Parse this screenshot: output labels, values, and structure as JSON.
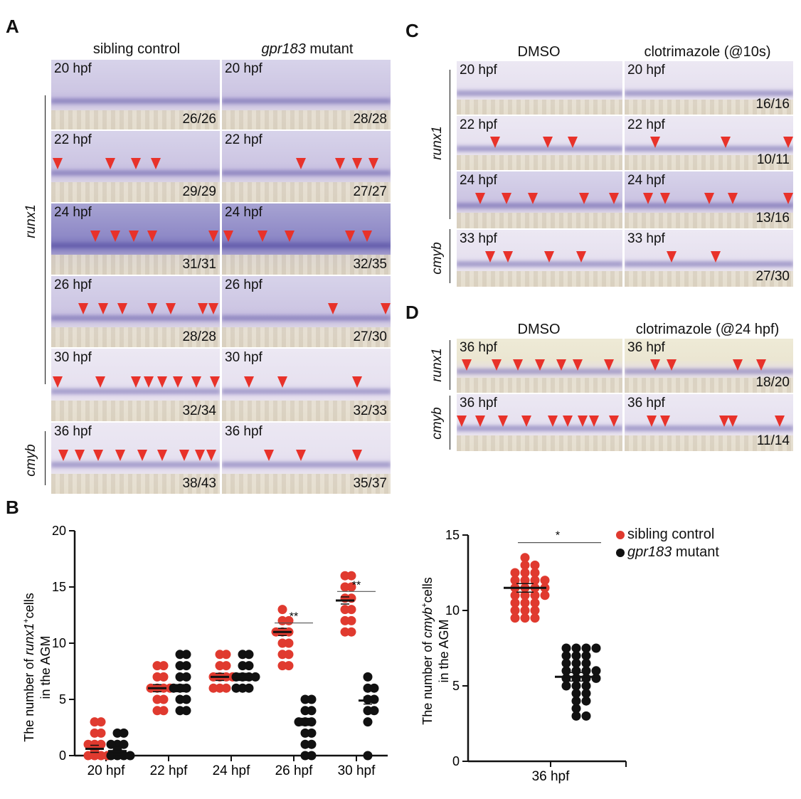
{
  "panels": {
    "A": {
      "label": "A",
      "col1": "sibling control",
      "col2_gene": "gpr183",
      "col2_rest": " mutant",
      "row_runx1": "runx1",
      "row_cmyb": "cmyb",
      "tiles": [
        {
          "left_label": "20 hpf",
          "left_count": "26/26",
          "right_label": "20 hpf",
          "right_count": "28/28"
        },
        {
          "left_label": "22 hpf",
          "left_count": "29/29",
          "right_label": "22 hpf",
          "right_count": "27/27"
        },
        {
          "left_label": "24 hpf",
          "left_count": "31/31",
          "right_label": "24 hpf",
          "right_count": "32/35"
        },
        {
          "left_label": "26 hpf",
          "left_count": "28/28",
          "right_label": "26 hpf",
          "right_count": "27/30"
        },
        {
          "left_label": "30 hpf",
          "left_count": "32/34",
          "right_label": "30 hpf",
          "right_count": "32/33"
        },
        {
          "left_label": "36 hpf",
          "left_count": "38/43",
          "right_label": "36 hpf",
          "right_count": "35/37"
        }
      ]
    },
    "C": {
      "label": "C",
      "col1": "DMSO",
      "col2": "clotrimazole (@10s)",
      "row_runx1": "runx1",
      "row_cmyb": "cmyb",
      "tiles": [
        {
          "left_label": "20 hpf",
          "right_label": "20 hpf",
          "right_count": "16/16"
        },
        {
          "left_label": "22 hpf",
          "right_label": "22 hpf",
          "right_count": "10/11"
        },
        {
          "left_label": "24 hpf",
          "right_label": "24 hpf",
          "right_count": "13/16"
        },
        {
          "left_label": "33 hpf",
          "right_label": "33 hpf",
          "right_count": "27/30"
        }
      ]
    },
    "D": {
      "label": "D",
      "col1": "DMSO",
      "col2": "clotrimazole (@24 hpf)",
      "row_runx1": "runx1",
      "row_cmyb": "cmyb",
      "tiles": [
        {
          "left_label": "36 hpf",
          "right_label": "36 hpf",
          "right_count": "18/20"
        },
        {
          "left_label": "36 hpf",
          "right_label": "36 hpf",
          "right_count": "11/14"
        }
      ]
    },
    "B": {
      "label": "B"
    }
  },
  "chart_data": [
    {
      "type": "scatter",
      "ylabel_pre": "The number of ",
      "ylabel_gene": "runx1",
      "ylabel_sup": "+",
      "ylabel_post": "cells",
      "ylabel_line2": "in the AGM",
      "ylim": [
        0,
        20
      ],
      "yticks": [
        "0",
        "5",
        "10",
        "15",
        "20"
      ],
      "categories": [
        "20 hpf",
        "22 hpf",
        "24 hpf",
        "26 hpf",
        "30 hpf"
      ],
      "series": [
        {
          "name": "sibling control",
          "color": "#e03a2f",
          "points": [
            [
              0,
              0
            ],
            [
              0,
              0
            ],
            [
              0,
              0
            ],
            [
              0,
              0
            ],
            [
              0,
              1
            ],
            [
              0,
              1
            ],
            [
              0,
              1
            ],
            [
              0,
              2
            ],
            [
              0,
              2
            ],
            [
              0,
              3
            ],
            [
              0,
              3
            ],
            [
              0,
              0.5
            ],
            [
              1,
              4
            ],
            [
              1,
              4
            ],
            [
              1,
              5
            ],
            [
              1,
              5
            ],
            [
              1,
              6
            ],
            [
              1,
              6
            ],
            [
              1,
              6
            ],
            [
              1,
              6
            ],
            [
              1,
              7
            ],
            [
              1,
              7
            ],
            [
              1,
              8
            ],
            [
              1,
              8
            ],
            [
              2,
              6
            ],
            [
              2,
              6
            ],
            [
              2,
              6
            ],
            [
              2,
              7
            ],
            [
              2,
              7
            ],
            [
              2,
              7
            ],
            [
              2,
              7
            ],
            [
              2,
              8
            ],
            [
              2,
              8
            ],
            [
              2,
              9
            ],
            [
              2,
              9
            ],
            [
              3,
              8
            ],
            [
              3,
              8
            ],
            [
              3,
              9
            ],
            [
              3,
              9
            ],
            [
              3,
              10
            ],
            [
              3,
              10
            ],
            [
              3,
              11
            ],
            [
              3,
              11
            ],
            [
              3,
              11
            ],
            [
              3,
              12
            ],
            [
              3,
              12
            ],
            [
              3,
              13
            ],
            [
              4,
              11
            ],
            [
              4,
              11
            ],
            [
              4,
              12
            ],
            [
              4,
              12
            ],
            [
              4,
              13
            ],
            [
              4,
              13
            ],
            [
              4,
              14
            ],
            [
              4,
              14
            ],
            [
              4,
              15
            ],
            [
              4,
              15
            ],
            [
              4,
              16
            ],
            [
              4,
              16
            ]
          ],
          "means": [
            0.6,
            6,
            7,
            11,
            13.8
          ]
        },
        {
          "name": "gpr183 mutant",
          "color": "#111111",
          "points": [
            [
              0,
              0
            ],
            [
              0,
              0
            ],
            [
              0,
              0
            ],
            [
              0,
              0
            ],
            [
              0,
              1
            ],
            [
              0,
              1
            ],
            [
              0,
              1
            ],
            [
              0,
              2
            ],
            [
              0,
              2
            ],
            [
              0,
              0.5
            ],
            [
              1,
              4
            ],
            [
              1,
              4
            ],
            [
              1,
              5
            ],
            [
              1,
              5
            ],
            [
              1,
              6
            ],
            [
              1,
              6
            ],
            [
              1,
              6
            ],
            [
              1,
              7
            ],
            [
              1,
              7
            ],
            [
              1,
              8
            ],
            [
              1,
              8
            ],
            [
              1,
              9
            ],
            [
              1,
              9
            ],
            [
              2,
              6
            ],
            [
              2,
              6
            ],
            [
              2,
              6
            ],
            [
              2,
              7
            ],
            [
              2,
              7
            ],
            [
              2,
              7
            ],
            [
              2,
              7
            ],
            [
              2,
              8
            ],
            [
              2,
              8
            ],
            [
              2,
              9
            ],
            [
              2,
              9
            ],
            [
              3,
              0
            ],
            [
              3,
              0
            ],
            [
              3,
              1
            ],
            [
              3,
              1
            ],
            [
              3,
              2
            ],
            [
              3,
              2
            ],
            [
              3,
              3
            ],
            [
              3,
              3
            ],
            [
              3,
              3
            ],
            [
              3,
              4
            ],
            [
              3,
              4
            ],
            [
              3,
              5
            ],
            [
              3,
              5
            ],
            [
              4,
              0
            ],
            [
              4,
              3
            ],
            [
              4,
              4
            ],
            [
              4,
              4
            ],
            [
              4,
              5
            ],
            [
              4,
              5
            ],
            [
              4,
              6
            ],
            [
              4,
              6
            ],
            [
              4,
              7
            ]
          ],
          "means": [
            0.4,
            6,
            7,
            3,
            4.9
          ]
        }
      ],
      "significance": [
        {
          "category_index": 3,
          "label": "**"
        },
        {
          "category_index": 4,
          "label": "**"
        }
      ]
    },
    {
      "type": "scatter",
      "ylabel_pre": "The number of ",
      "ylabel_gene": "cmyb",
      "ylabel_sup": "+",
      "ylabel_post": "cells",
      "ylabel_line2": "in the AGM",
      "ylim": [
        0,
        15
      ],
      "yticks": [
        "0",
        "5",
        "10",
        "15"
      ],
      "categories": [
        "36 hpf"
      ],
      "series": [
        {
          "name": "sibling control",
          "color": "#e03a2f",
          "points": [
            9.5,
            9.5,
            9.5,
            10,
            10,
            10,
            10.5,
            10.5,
            10.5,
            11,
            11,
            11,
            11,
            11.5,
            11.5,
            11.5,
            11.5,
            12,
            12,
            12,
            12,
            12.5,
            12.5,
            12.5,
            13,
            13,
            13.5
          ],
          "mean": 11.5
        },
        {
          "name": "gpr183 mutant",
          "color": "#111111",
          "points": [
            3,
            3,
            3.5,
            4,
            4,
            4.5,
            4.5,
            5,
            5,
            5,
            5.5,
            5.5,
            5.5,
            5.5,
            6,
            6,
            6,
            6,
            6.5,
            6.5,
            6.5,
            7,
            7,
            7,
            7.5,
            7.5,
            7.5,
            7.5
          ],
          "mean": 5.6
        }
      ],
      "significance": [
        {
          "label": "*"
        }
      ],
      "legend": [
        {
          "text": "sibling control",
          "gene": "",
          "color": "#e03a2f"
        },
        {
          "text": " mutant",
          "gene": "gpr183",
          "color": "#111111"
        }
      ]
    }
  ]
}
